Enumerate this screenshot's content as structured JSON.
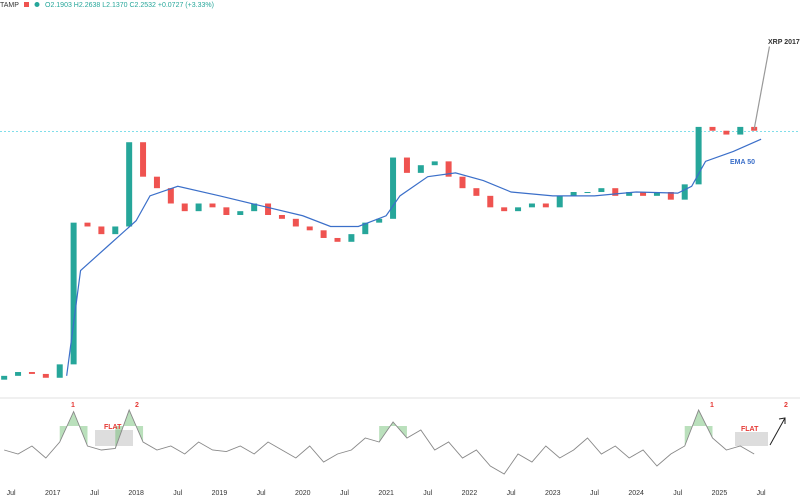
{
  "header": {
    "symbol": "TAMP",
    "ohlc": "O2.1903 H2.2638 L2.1370 C2.2532 +0.0727 (+3.33%)"
  },
  "chart_data": [
    {
      "type": "candlestick",
      "xlim": [
        -7.6,
        107.6
      ],
      "ylim": [
        0,
        100
      ],
      "hline": 68.8,
      "up_color": "#26a69a",
      "down_color": "#ef5350",
      "x": [
        -7,
        -5,
        -3,
        -1,
        1,
        3,
        5,
        7,
        9,
        11,
        13,
        15,
        17,
        19,
        21,
        23,
        25,
        27,
        29,
        31,
        33,
        35,
        37,
        39,
        41,
        43,
        45,
        47,
        49,
        51,
        53,
        55,
        57,
        59,
        61,
        63,
        65,
        67,
        69,
        71,
        73,
        75,
        77,
        79,
        81,
        83,
        85,
        87,
        89,
        91,
        93,
        95,
        97,
        99,
        101
      ],
      "open": [
        4,
        5,
        6,
        5.5,
        4.5,
        8,
        45,
        44,
        42,
        44,
        66,
        57,
        54,
        50,
        48,
        50,
        49,
        47,
        48,
        50,
        47,
        46,
        44,
        43,
        41,
        40,
        42,
        45,
        46,
        62,
        58,
        60,
        61,
        57,
        54,
        52,
        49,
        48,
        49,
        50,
        49,
        52,
        53,
        53,
        54,
        52,
        53,
        52,
        53,
        51,
        55,
        70,
        69,
        68,
        70
      ],
      "close": [
        5,
        6,
        5.5,
        4.5,
        8,
        45,
        44,
        42,
        44,
        66,
        57,
        54,
        50,
        48,
        50,
        49,
        47,
        48,
        50,
        47,
        46,
        44,
        43,
        41,
        40,
        42,
        45,
        46,
        62,
        58,
        60,
        61,
        57,
        54,
        52,
        49,
        48,
        49,
        50,
        49,
        52,
        53,
        53,
        54,
        52,
        53,
        52,
        53,
        51,
        55,
        70,
        69,
        68,
        70,
        69
      ],
      "ema": {
        "name": "EMA 50",
        "color": "#3b6fc9",
        "x": [
          2,
          4,
          8,
          12,
          14,
          18,
          24,
          30,
          36,
          40,
          44,
          48,
          50,
          54,
          58,
          62,
          66,
          72,
          78,
          84,
          90,
          92,
          94,
          98,
          102
        ],
        "values": [
          5,
          32.5,
          39,
          45.5,
          52,
          54.5,
          52,
          49.4,
          46.8,
          44,
          44,
          46.8,
          52,
          57,
          58,
          56,
          53,
          52,
          52,
          53,
          52.7,
          54.5,
          61,
          63.6,
          66.8
        ]
      },
      "projection": {
        "name": "XRP 2017",
        "color": "#999999",
        "x": [
          101,
          103.2
        ],
        "values": [
          69.4,
          91
        ]
      }
    },
    {
      "type": "line",
      "xlim": [
        -7.6,
        107.6
      ],
      "ylim": [
        0,
        100
      ],
      "color": "#888888",
      "threshold": 70,
      "highlight_color": "#66bb6a",
      "x": [
        -7,
        -5,
        -3,
        -1,
        1,
        3,
        5,
        7,
        9,
        11,
        13,
        15,
        17,
        19,
        21,
        23,
        25,
        27,
        29,
        31,
        33,
        35,
        37,
        39,
        41,
        43,
        45,
        47,
        49,
        51,
        53,
        55,
        57,
        59,
        61,
        63,
        65,
        67,
        69,
        71,
        73,
        75,
        77,
        79,
        81,
        83,
        85,
        87,
        89,
        91,
        93,
        95,
        97,
        99,
        101
      ],
      "values": [
        40,
        35,
        45,
        30,
        50,
        88,
        45,
        40,
        42,
        90,
        50,
        40,
        45,
        35,
        50,
        40,
        38,
        45,
        35,
        50,
        40,
        30,
        45,
        25,
        35,
        40,
        55,
        50,
        75,
        55,
        65,
        40,
        50,
        30,
        40,
        20,
        10,
        35,
        25,
        45,
        30,
        40,
        55,
        35,
        45,
        30,
        40,
        20,
        35,
        45,
        90,
        55,
        40,
        45,
        35
      ],
      "annotations": [
        "1",
        "2",
        "FLAT",
        "1",
        "FLAT",
        "2"
      ],
      "xticks": [
        {
          "value": -6,
          "label": "Jul"
        },
        {
          "value": 0,
          "label": "2017"
        },
        {
          "value": 6,
          "label": "Jul"
        },
        {
          "value": 12,
          "label": "2018"
        },
        {
          "value": 18,
          "label": "Jul"
        },
        {
          "value": 24,
          "label": "2019"
        },
        {
          "value": 30,
          "label": "Jul"
        },
        {
          "value": 36,
          "label": "2020"
        },
        {
          "value": 42,
          "label": "Jul"
        },
        {
          "value": 48,
          "label": "2021"
        },
        {
          "value": 54,
          "label": "Jul"
        },
        {
          "value": 60,
          "label": "2022"
        },
        {
          "value": 66,
          "label": "Jul"
        },
        {
          "value": 72,
          "label": "2023"
        },
        {
          "value": 78,
          "label": "Jul"
        },
        {
          "value": 84,
          "label": "2024"
        },
        {
          "value": 90,
          "label": "Jul"
        },
        {
          "value": 96,
          "label": "2025"
        },
        {
          "value": 102,
          "label": "Jul"
        }
      ]
    }
  ]
}
